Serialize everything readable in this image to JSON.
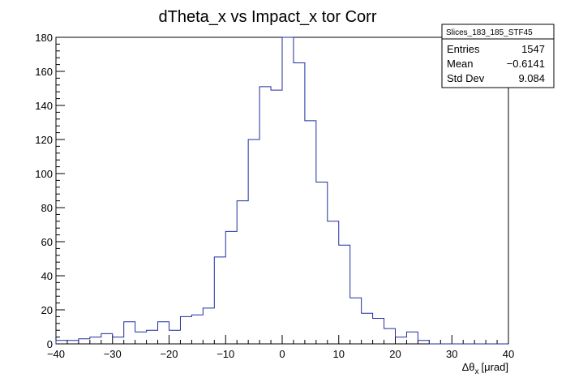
{
  "chart_data": {
    "type": "histogram",
    "title": "dTheta_x vs Impact_x tor Corr",
    "xlabel": "Δθ",
    "xlabel_sub": "x",
    "xlabel_unit": "[μrad]",
    "ylabel": "",
    "xlim": [
      -40,
      40
    ],
    "ylim": [
      0,
      180
    ],
    "x_ticks": [
      -40,
      -30,
      -20,
      -10,
      0,
      10,
      20,
      30,
      40
    ],
    "y_ticks": [
      0,
      20,
      40,
      60,
      80,
      100,
      120,
      140,
      160,
      180
    ],
    "bin_width": 2,
    "bin_edges_start": -40,
    "values": [
      2,
      2,
      3,
      4,
      6,
      4,
      13,
      7,
      8,
      13,
      8,
      16,
      17,
      21,
      51,
      66,
      84,
      120,
      151,
      149,
      180,
      165,
      131,
      95,
      72,
      58,
      27,
      18,
      15,
      9,
      4,
      7,
      2,
      0,
      0,
      0,
      0,
      0,
      0,
      0
    ],
    "line_color": "#1f2ea0",
    "stats": {
      "name": "Slices_183_185_STF45",
      "rows": [
        {
          "label": "Entries",
          "value": "1547"
        },
        {
          "label": "Mean",
          "value": "−0.6141"
        },
        {
          "label": "Std Dev",
          "value": "9.084"
        }
      ]
    }
  }
}
